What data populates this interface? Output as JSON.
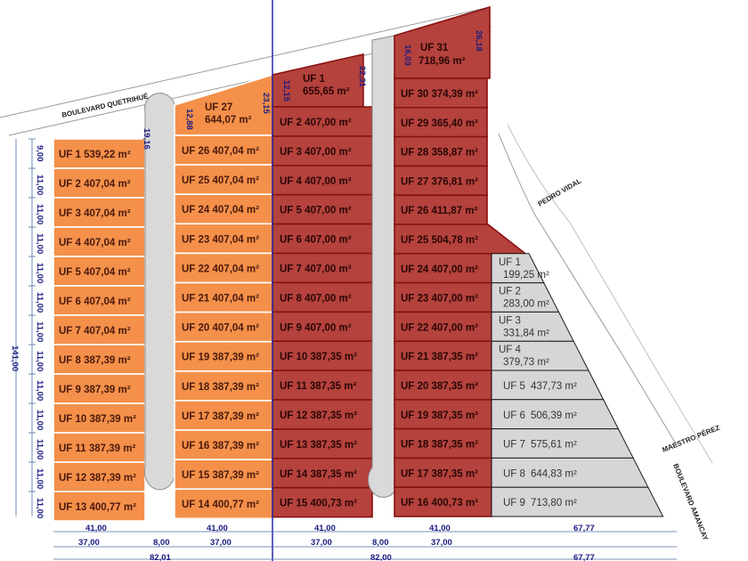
{
  "streets": {
    "boulevard_quetrihue": "BOULEVARD QUETRIHUÉ",
    "pedro_vidal": "PEDRO VIDAL",
    "maestro_perez": "MAESTRO PÉREZ",
    "boulevard_amancay": "BOULEVARD AMANCAY"
  },
  "colors": {
    "orange": "#f4904a",
    "red": "#b5423c",
    "grey": "#d6d6d6"
  },
  "orange_left": [
    "UF 1 539,22 m²",
    "UF 2 407,04 m²",
    "UF 3 407,04 m²",
    "UF 4 407,04 m²",
    "UF 5 407,04 m²",
    "UF 6 407,04 m²",
    "UF 7 407,04 m²",
    "UF 8 387,39 m²",
    "UF 9 387,39 m²",
    "UF 10 387,39 m²",
    "UF 11 387,39 m²",
    "UF 12 387,39 m²",
    "UF 13 400,77 m²"
  ],
  "orange_right": {
    "top_name": "UF 27",
    "top_area": "644,07 m²",
    "lots": [
      "UF 26 407,04 m²",
      "UF 25 407,04 m²",
      "UF 24 407,04 m²",
      "UF 23 407,04 m²",
      "UF 22 407,04 m²",
      "UF 21 407,04 m²",
      "UF 20 407,04 m²",
      "UF 19 387,39 m²",
      "UF 18 387,39 m²",
      "UF 17 387,39 m²",
      "UF 16 387,39 m²",
      "UF 15 387,39 m²",
      "UF 14 400,77 m²"
    ]
  },
  "red_left": {
    "top_name": "UF 1",
    "top_area": "655,65 m²",
    "lots": [
      "UF 2 407,00 m²",
      "UF 3 407,00 m²",
      "UF 4 407,00 m²",
      "UF 5 407,00 m²",
      "UF 6 407,00 m²",
      "UF 7 407,00 m²",
      "UF 8 407,00 m²",
      "UF 9 407,00 m²",
      "UF 10 387,35 m²",
      "UF 11 387,35 m²",
      "UF 12 387,35 m²",
      "UF 13 387,35 m²",
      "UF 14 387,35 m²",
      "UF 15 400,73 m²"
    ]
  },
  "red_right": {
    "top_name": "UF 31",
    "top_area": "718,96 m²",
    "lots": [
      "UF 30 374,39 m²",
      "UF 29 365,40 m²",
      "UF 28 358,87 m²",
      "UF 27 376,81 m²",
      "UF 26 411,87 m²",
      "UF 25 504,78 m²",
      "UF 24 407,00 m²",
      "UF 23 407,00 m²",
      "UF 22 407,00 m²",
      "UF 21 387,35 m²",
      "UF 20 387,35 m²",
      "UF 19 387,35 m²",
      "UF 18 387,35 m²",
      "UF 17 387,35 m²",
      "UF 16 400,73 m²"
    ]
  },
  "grey": [
    {
      "name": "UF 1",
      "area": "199,25 m²"
    },
    {
      "name": "UF 2",
      "area": "283,00 m²"
    },
    {
      "name": "UF 3",
      "area": "331,84 m²"
    },
    {
      "name": "UF 4",
      "area": "379,73 m²"
    },
    {
      "name": "UF 5",
      "area": "437,73 m²"
    },
    {
      "name": "UF 6",
      "area": "506,39 m²"
    },
    {
      "name": "UF 7",
      "area": "575,61 m²"
    },
    {
      "name": "UF 8",
      "area": "644,83 m²"
    },
    {
      "name": "UF 9",
      "area": "713,80 m²"
    }
  ],
  "dims": {
    "left_rows": [
      "9,00",
      "11,00",
      "11,00",
      "11,00",
      "11,00",
      "11,00",
      "11,00",
      "11,00",
      "11,00",
      "11,00",
      "11,00",
      "11,00",
      "11,00"
    ],
    "total_height": "141,00",
    "top_19_16": "19,16",
    "top_12_88": "12,88",
    "top_23_15": "23,15",
    "top_12_15": "12,15",
    "top_22_31": "22,31",
    "top_16_03": "16,03",
    "top_26_18": "26,18",
    "bottom_41": [
      "41,00",
      "41,00",
      "41,00",
      "41,00"
    ],
    "bottom_37": [
      "37,00",
      "37,00",
      "37,00",
      "37,00"
    ],
    "bottom_8": [
      "8,00",
      "8,00"
    ],
    "bottom_total_left": "82,01",
    "bottom_total_right": "82,00",
    "bottom_67_77": "67,77",
    "bottom_67_77_b": "67,77"
  }
}
